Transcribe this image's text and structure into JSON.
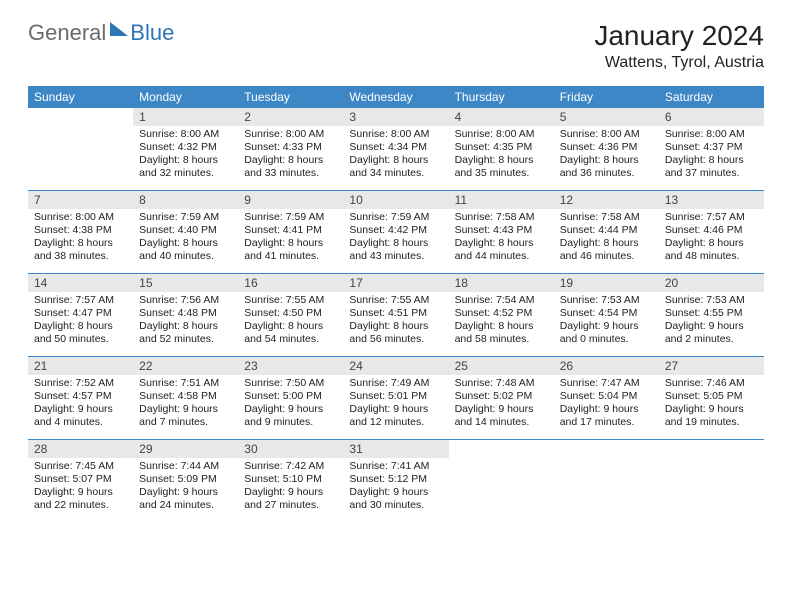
{
  "logo": {
    "text1": "General",
    "text2": "Blue"
  },
  "header": {
    "title": "January 2024",
    "location": "Wattens, Tyrol, Austria"
  },
  "colors": {
    "brand": "#3d87c7",
    "header_gray": "#e8e8e8",
    "logo_gray": "#6b6b6b",
    "logo_blue": "#2e75b6"
  },
  "day_names": [
    "Sunday",
    "Monday",
    "Tuesday",
    "Wednesday",
    "Thursday",
    "Friday",
    "Saturday"
  ],
  "weeks": [
    [
      {
        "empty": true
      },
      {
        "day": "1",
        "sunrise": "Sunrise: 8:00 AM",
        "sunset": "Sunset: 4:32 PM",
        "daylight1": "Daylight: 8 hours",
        "daylight2": "and 32 minutes."
      },
      {
        "day": "2",
        "sunrise": "Sunrise: 8:00 AM",
        "sunset": "Sunset: 4:33 PM",
        "daylight1": "Daylight: 8 hours",
        "daylight2": "and 33 minutes."
      },
      {
        "day": "3",
        "sunrise": "Sunrise: 8:00 AM",
        "sunset": "Sunset: 4:34 PM",
        "daylight1": "Daylight: 8 hours",
        "daylight2": "and 34 minutes."
      },
      {
        "day": "4",
        "sunrise": "Sunrise: 8:00 AM",
        "sunset": "Sunset: 4:35 PM",
        "daylight1": "Daylight: 8 hours",
        "daylight2": "and 35 minutes."
      },
      {
        "day": "5",
        "sunrise": "Sunrise: 8:00 AM",
        "sunset": "Sunset: 4:36 PM",
        "daylight1": "Daylight: 8 hours",
        "daylight2": "and 36 minutes."
      },
      {
        "day": "6",
        "sunrise": "Sunrise: 8:00 AM",
        "sunset": "Sunset: 4:37 PM",
        "daylight1": "Daylight: 8 hours",
        "daylight2": "and 37 minutes."
      }
    ],
    [
      {
        "day": "7",
        "sunrise": "Sunrise: 8:00 AM",
        "sunset": "Sunset: 4:38 PM",
        "daylight1": "Daylight: 8 hours",
        "daylight2": "and 38 minutes."
      },
      {
        "day": "8",
        "sunrise": "Sunrise: 7:59 AM",
        "sunset": "Sunset: 4:40 PM",
        "daylight1": "Daylight: 8 hours",
        "daylight2": "and 40 minutes."
      },
      {
        "day": "9",
        "sunrise": "Sunrise: 7:59 AM",
        "sunset": "Sunset: 4:41 PM",
        "daylight1": "Daylight: 8 hours",
        "daylight2": "and 41 minutes."
      },
      {
        "day": "10",
        "sunrise": "Sunrise: 7:59 AM",
        "sunset": "Sunset: 4:42 PM",
        "daylight1": "Daylight: 8 hours",
        "daylight2": "and 43 minutes."
      },
      {
        "day": "11",
        "sunrise": "Sunrise: 7:58 AM",
        "sunset": "Sunset: 4:43 PM",
        "daylight1": "Daylight: 8 hours",
        "daylight2": "and 44 minutes."
      },
      {
        "day": "12",
        "sunrise": "Sunrise: 7:58 AM",
        "sunset": "Sunset: 4:44 PM",
        "daylight1": "Daylight: 8 hours",
        "daylight2": "and 46 minutes."
      },
      {
        "day": "13",
        "sunrise": "Sunrise: 7:57 AM",
        "sunset": "Sunset: 4:46 PM",
        "daylight1": "Daylight: 8 hours",
        "daylight2": "and 48 minutes."
      }
    ],
    [
      {
        "day": "14",
        "sunrise": "Sunrise: 7:57 AM",
        "sunset": "Sunset: 4:47 PM",
        "daylight1": "Daylight: 8 hours",
        "daylight2": "and 50 minutes."
      },
      {
        "day": "15",
        "sunrise": "Sunrise: 7:56 AM",
        "sunset": "Sunset: 4:48 PM",
        "daylight1": "Daylight: 8 hours",
        "daylight2": "and 52 minutes."
      },
      {
        "day": "16",
        "sunrise": "Sunrise: 7:55 AM",
        "sunset": "Sunset: 4:50 PM",
        "daylight1": "Daylight: 8 hours",
        "daylight2": "and 54 minutes."
      },
      {
        "day": "17",
        "sunrise": "Sunrise: 7:55 AM",
        "sunset": "Sunset: 4:51 PM",
        "daylight1": "Daylight: 8 hours",
        "daylight2": "and 56 minutes."
      },
      {
        "day": "18",
        "sunrise": "Sunrise: 7:54 AM",
        "sunset": "Sunset: 4:52 PM",
        "daylight1": "Daylight: 8 hours",
        "daylight2": "and 58 minutes."
      },
      {
        "day": "19",
        "sunrise": "Sunrise: 7:53 AM",
        "sunset": "Sunset: 4:54 PM",
        "daylight1": "Daylight: 9 hours",
        "daylight2": "and 0 minutes."
      },
      {
        "day": "20",
        "sunrise": "Sunrise: 7:53 AM",
        "sunset": "Sunset: 4:55 PM",
        "daylight1": "Daylight: 9 hours",
        "daylight2": "and 2 minutes."
      }
    ],
    [
      {
        "day": "21",
        "sunrise": "Sunrise: 7:52 AM",
        "sunset": "Sunset: 4:57 PM",
        "daylight1": "Daylight: 9 hours",
        "daylight2": "and 4 minutes."
      },
      {
        "day": "22",
        "sunrise": "Sunrise: 7:51 AM",
        "sunset": "Sunset: 4:58 PM",
        "daylight1": "Daylight: 9 hours",
        "daylight2": "and 7 minutes."
      },
      {
        "day": "23",
        "sunrise": "Sunrise: 7:50 AM",
        "sunset": "Sunset: 5:00 PM",
        "daylight1": "Daylight: 9 hours",
        "daylight2": "and 9 minutes."
      },
      {
        "day": "24",
        "sunrise": "Sunrise: 7:49 AM",
        "sunset": "Sunset: 5:01 PM",
        "daylight1": "Daylight: 9 hours",
        "daylight2": "and 12 minutes."
      },
      {
        "day": "25",
        "sunrise": "Sunrise: 7:48 AM",
        "sunset": "Sunset: 5:02 PM",
        "daylight1": "Daylight: 9 hours",
        "daylight2": "and 14 minutes."
      },
      {
        "day": "26",
        "sunrise": "Sunrise: 7:47 AM",
        "sunset": "Sunset: 5:04 PM",
        "daylight1": "Daylight: 9 hours",
        "daylight2": "and 17 minutes."
      },
      {
        "day": "27",
        "sunrise": "Sunrise: 7:46 AM",
        "sunset": "Sunset: 5:05 PM",
        "daylight1": "Daylight: 9 hours",
        "daylight2": "and 19 minutes."
      }
    ],
    [
      {
        "day": "28",
        "sunrise": "Sunrise: 7:45 AM",
        "sunset": "Sunset: 5:07 PM",
        "daylight1": "Daylight: 9 hours",
        "daylight2": "and 22 minutes."
      },
      {
        "day": "29",
        "sunrise": "Sunrise: 7:44 AM",
        "sunset": "Sunset: 5:09 PM",
        "daylight1": "Daylight: 9 hours",
        "daylight2": "and 24 minutes."
      },
      {
        "day": "30",
        "sunrise": "Sunrise: 7:42 AM",
        "sunset": "Sunset: 5:10 PM",
        "daylight1": "Daylight: 9 hours",
        "daylight2": "and 27 minutes."
      },
      {
        "day": "31",
        "sunrise": "Sunrise: 7:41 AM",
        "sunset": "Sunset: 5:12 PM",
        "daylight1": "Daylight: 9 hours",
        "daylight2": "and 30 minutes."
      },
      {
        "empty": true
      },
      {
        "empty": true
      },
      {
        "empty": true
      }
    ]
  ]
}
